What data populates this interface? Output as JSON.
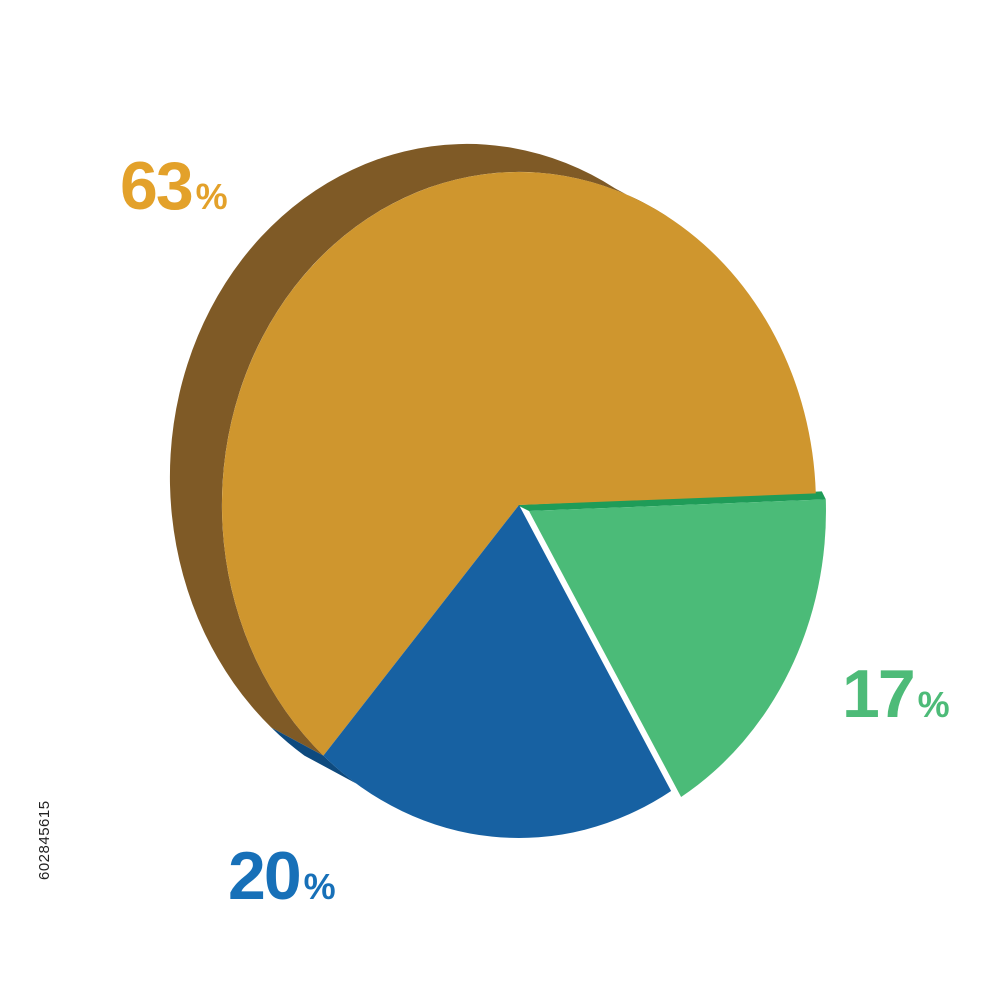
{
  "chart_data": {
    "type": "pie",
    "style": "3d",
    "title": "",
    "slices": [
      {
        "label": "63%",
        "value": 63,
        "color": "#cf962e",
        "side_color": "#7f5a26",
        "label_color": "#e3a12a"
      },
      {
        "label": "20%",
        "value": 20,
        "color": "#1761a2",
        "side_color": "#0e4a7e",
        "label_color": "#1770b8"
      },
      {
        "label": "17%",
        "value": 17,
        "color": "#4bbb78",
        "side_color": "#1f9c58",
        "label_color": "#4dbb78"
      }
    ],
    "legend": "none"
  },
  "labels": {
    "gold": {
      "number": "63",
      "sign": "%"
    },
    "blue": {
      "number": "20",
      "sign": "%"
    },
    "green": {
      "number": "17",
      "sign": "%"
    }
  },
  "stock_id": "602845615"
}
